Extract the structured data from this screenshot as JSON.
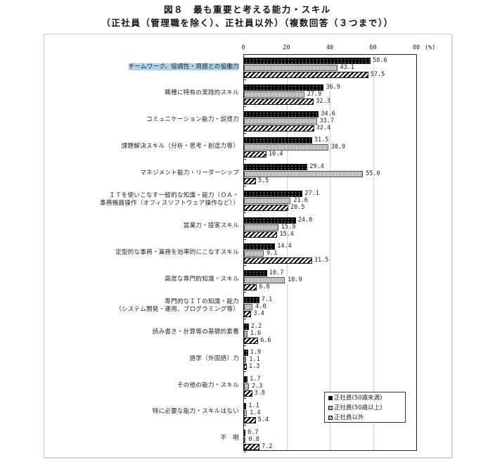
{
  "title": {
    "line1": "図８　最も重要と考える能力・スキル",
    "line2": "（正社員（管理職を除く）、正社員以外）（複数回答（３つまで））"
  },
  "axis": {
    "ticks": [
      "0",
      "20",
      "40",
      "60",
      "80"
    ],
    "unit": "(%)"
  },
  "legend": [
    {
      "key": "u50",
      "label": "正社員(50歳未満)"
    },
    {
      "key": "o50",
      "label": "正社員(50歳以上)"
    },
    {
      "key": "non",
      "label": "正社員以外"
    }
  ],
  "chart_data": {
    "type": "bar",
    "orientation": "horizontal",
    "title": "図８　最も重要と考える能力・スキル（正社員（管理職を除く）、正社員以外）（複数回答（３つまで））",
    "xlabel": "(%)",
    "ylabel": "",
    "xlim": [
      0,
      80
    ],
    "xticks": [
      0,
      20,
      40,
      60,
      80
    ],
    "grid": true,
    "legend_position": "lower right inside",
    "categories": [
      "チームワーク、協調性・周囲との協働力",
      "職種に特有の実践的スキル",
      "コミュニケーション能力・説得力",
      "課題解決スキル（分析・思考・創造力等）",
      "マネジメント能力・リーダーシップ",
      "ＩＴを使いこなす一般的な知識・能力（ＯＡ・事務機器操作（オフィスソフトウェア操作など））",
      "営業力・接客スキル",
      "定型的な事務・業務を効率的にこなすスキル",
      "高度な専門的知識・スキル",
      "専門的なＩＴの知識・能力（システム開発・運用、プログラミング等）",
      "読み書き・計算等の基礎的素養",
      "語学（外国語）力",
      "その他の能力・スキル",
      "特に必要な能力・スキルはない",
      "不　明"
    ],
    "series": [
      {
        "name": "正社員(50歳未満)",
        "values": [
          58.6,
          36.9,
          34.6,
          31.5,
          29.4,
          27.1,
          24.0,
          14.4,
          10.7,
          7.1,
          2.2,
          1.9,
          1.7,
          1.1,
          0.7
        ]
      },
      {
        "name": "正社員(50歳以上)",
        "values": [
          43.1,
          27.9,
          33.7,
          38.9,
          55.0,
          21.6,
          15.9,
          9.1,
          18.9,
          4.0,
          1.6,
          1.1,
          2.3,
          1.4,
          0.8
        ]
      },
      {
        "name": "正社員以外",
        "values": [
          57.5,
          32.3,
          32.4,
          10.4,
          5.5,
          20.5,
          15.4,
          31.5,
          6.0,
          3.4,
          6.6,
          1.3,
          3.8,
          5.4,
          7.2
        ]
      }
    ]
  },
  "rows": [
    {
      "label_lines": [
        "チームワーク、協調性・周囲との協働力"
      ],
      "highlighted": true,
      "vals": [
        "58.6",
        "43.1",
        "57.5"
      ]
    },
    {
      "label_lines": [
        "職種に特有の実践的スキル"
      ],
      "vals": [
        "36.9",
        "27.9",
        "32.3"
      ]
    },
    {
      "label_lines": [
        "コミュニケーション能力・説得力"
      ],
      "vals": [
        "34.6",
        "33.7",
        "32.4"
      ]
    },
    {
      "label_lines": [
        "課題解決スキル（分析・思考・創造力等）"
      ],
      "vals": [
        "31.5",
        "38.9",
        "10.4"
      ]
    },
    {
      "label_lines": [
        "マネジメント能力・リーダーシップ"
      ],
      "vals": [
        "29.4",
        "55.0",
        "5.5"
      ]
    },
    {
      "label_lines": [
        "ＩＴを使いこなす一般的な知識・能力（ＯＡ・",
        "事務機器操作（オフィスソフトウェア操作など））"
      ],
      "vals": [
        "27.1",
        "21.6",
        "20.5"
      ]
    },
    {
      "label_lines": [
        "営業力・接客スキル"
      ],
      "vals": [
        "24.0",
        "15.9",
        "15.4"
      ]
    },
    {
      "label_lines": [
        "定型的な事務・業務を効率的にこなすスキル"
      ],
      "vals": [
        "14.4",
        "9.1",
        "31.5"
      ]
    },
    {
      "label_lines": [
        "高度な専門的知識・スキル"
      ],
      "vals": [
        "10.7",
        "18.9",
        "6.0"
      ]
    },
    {
      "label_lines": [
        "専門的なＩＴの知識・能力",
        "（システム開発・運用、プログラミング等）"
      ],
      "vals": [
        "7.1",
        "4.0",
        "3.4"
      ]
    },
    {
      "label_lines": [
        "読み書き・計算等の基礎的素養"
      ],
      "vals": [
        "2.2",
        "1.6",
        "6.6"
      ]
    },
    {
      "label_lines": [
        "語学（外国語）力"
      ],
      "vals": [
        "1.9",
        "1.1",
        "1.3"
      ]
    },
    {
      "label_lines": [
        "その他の能力・スキル"
      ],
      "vals": [
        "1.7",
        "2.3",
        "3.8"
      ]
    },
    {
      "label_lines": [
        "特に必要な能力・スキルはない"
      ],
      "vals": [
        "1.1",
        "1.4",
        "5.4"
      ]
    },
    {
      "label_lines": [
        "不　明"
      ],
      "vals": [
        "0.7",
        "0.8",
        "7.2"
      ]
    }
  ]
}
